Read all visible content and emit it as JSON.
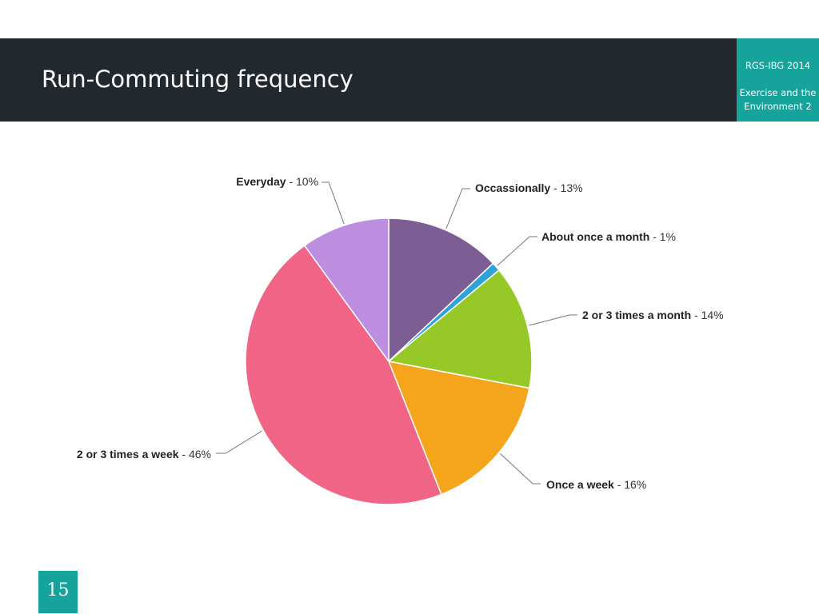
{
  "slide": {
    "title": "Run-Commuting frequency",
    "conference": "RGS-IBG 2014",
    "session": "Exercise and the Environment 2",
    "page_number": "15"
  },
  "colors": {
    "header_bg": "#22292e",
    "accent": "#15a39b"
  },
  "chart_data": {
    "type": "pie",
    "title": "",
    "start": "12 o'clock, clockwise",
    "slices": [
      {
        "label": "Occassionally",
        "pct_label": "13%",
        "value": 13,
        "color": "#7d5e94"
      },
      {
        "label": "About once a month",
        "pct_label": "1%",
        "value": 1,
        "color": "#2fa3d8"
      },
      {
        "label": "2 or 3 times a month",
        "pct_label": "14%",
        "value": 14,
        "color": "#96c928"
      },
      {
        "label": "Once a week",
        "pct_label": "16%",
        "value": 16,
        "color": "#f4a51c"
      },
      {
        "label": "2 or 3 times a week",
        "pct_label": "46%",
        "value": 46,
        "color": "#f06586"
      },
      {
        "label": "Everyday",
        "pct_label": "10%",
        "value": 10,
        "color": "#bd8ee0"
      }
    ]
  }
}
